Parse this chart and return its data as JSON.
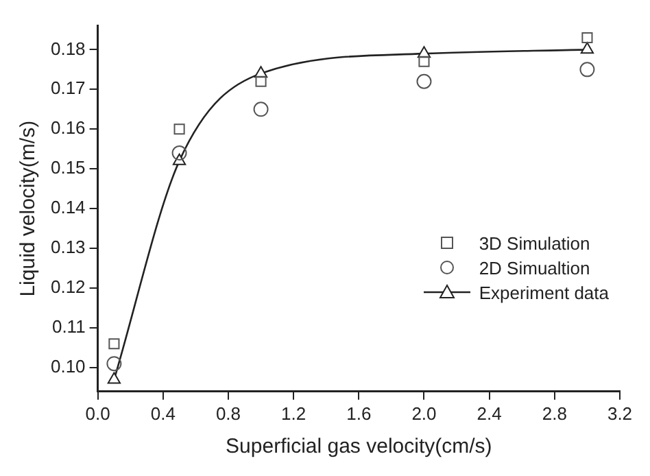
{
  "chart_data": {
    "type": "scatter",
    "xlabel": "Superficial gas velocity(cm/s)",
    "ylabel": "Liquid velocity(m/s)",
    "x": [
      0.1,
      0.5,
      1.0,
      2.0,
      3.0
    ],
    "series": [
      {
        "name": "3D Simulation",
        "type": "scatter",
        "marker": "square",
        "color": "#555555",
        "values": [
          0.106,
          0.16,
          0.172,
          0.177,
          0.183
        ]
      },
      {
        "name": "2D Simualtion",
        "type": "scatter",
        "marker": "circle",
        "color": "#555555",
        "values": [
          0.101,
          0.154,
          0.165,
          0.172,
          0.175
        ]
      },
      {
        "name": "Experiment data",
        "type": "line",
        "marker": "triangle",
        "color": "#222222",
        "values": [
          0.097,
          0.152,
          0.174,
          0.179,
          0.18
        ]
      }
    ],
    "xlim": [
      0,
      3.2
    ],
    "xticks": [
      {
        "value": 0,
        "label": "0.0"
      },
      0.4,
      0.8,
      1.2,
      1.6,
      {
        "value": 2,
        "label": "2.0"
      },
      2.4,
      2.8,
      3.2
    ],
    "ylim": [
      0.094,
      0.186
    ],
    "yticks": [
      {
        "value": 0.1,
        "label": "0.10"
      },
      0.11,
      0.12,
      0.13,
      0.14,
      0.15,
      0.16,
      0.17,
      0.18
    ],
    "grid": false,
    "legend": "right"
  }
}
